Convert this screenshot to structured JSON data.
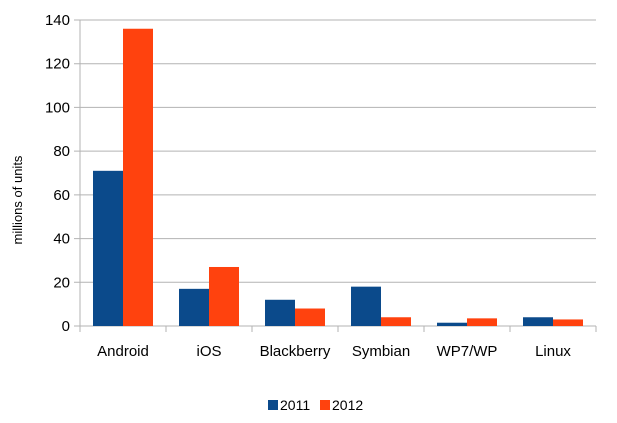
{
  "chart_data": {
    "type": "bar",
    "categories": [
      "Android",
      "iOS",
      "Blackberry",
      "Symbian",
      "WP7/WP",
      "Linux"
    ],
    "series": [
      {
        "name": "2011",
        "values": [
          71,
          17,
          12,
          18,
          1.5,
          4
        ],
        "color": "#0b4a8b"
      },
      {
        "name": "2012",
        "values": [
          136,
          27,
          8,
          4,
          3.5,
          3
        ],
        "color": "#ff420e"
      }
    ],
    "title": "",
    "xlabel": "",
    "ylabel": "millions of units",
    "ylim": [
      0,
      140
    ],
    "yticks": [
      0,
      20,
      40,
      60,
      80,
      100,
      120,
      140
    ],
    "grid": true,
    "legend_position": "bottom",
    "grid_color": "#b3b3b3",
    "axis_color": "#b3b3b3"
  }
}
